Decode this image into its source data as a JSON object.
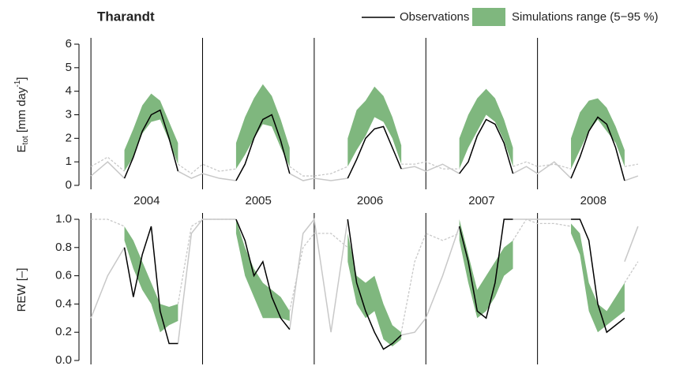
{
  "chart_data": [
    {
      "type": "band-line",
      "title": "Tharandt",
      "ylabel": [
        "E",
        "tot",
        " [mm day",
        "-1",
        "]"
      ],
      "x": [
        2004,
        2004.15,
        2004.3,
        2004.38,
        2004.46,
        2004.54,
        2004.62,
        2004.7,
        2004.78,
        2004.9,
        2005,
        2005.15,
        2005.3,
        2005.38,
        2005.46,
        2005.54,
        2005.62,
        2005.7,
        2005.78,
        2005.9,
        2006,
        2006.15,
        2006.3,
        2006.38,
        2006.46,
        2006.54,
        2006.62,
        2006.7,
        2006.78,
        2006.9,
        2007,
        2007.15,
        2007.3,
        2007.38,
        2007.46,
        2007.54,
        2007.62,
        2007.7,
        2007.78,
        2007.9,
        2008,
        2008.15,
        2008.3,
        2008.38,
        2008.46,
        2008.54,
        2008.62,
        2008.7,
        2008.78,
        2008.9
      ],
      "xlim": [
        2003.9,
        2009
      ],
      "xticks": [
        {
          "value": 2004.5,
          "label": "2004"
        },
        {
          "value": 2005.5,
          "label": "2005"
        },
        {
          "value": 2006.5,
          "label": "2006"
        },
        {
          "value": 2007.5,
          "label": "2007"
        },
        {
          "value": 2008.5,
          "label": "2008"
        }
      ],
      "vlines": [
        2004,
        2005,
        2006,
        2007,
        2008
      ],
      "ylim": [
        0,
        6
      ],
      "yticks": [
        0,
        1,
        2,
        3,
        4,
        5,
        6
      ],
      "series": [
        {
          "name": "Observations",
          "color": "#000000",
          "values": [
            null,
            null,
            0.3,
            1.2,
            2.3,
            3.0,
            3.2,
            2.0,
            0.6,
            null,
            null,
            null,
            0.2,
            0.9,
            2.0,
            2.8,
            3.0,
            1.9,
            0.5,
            null,
            null,
            null,
            0.3,
            1.1,
            2.0,
            2.4,
            2.5,
            1.6,
            0.7,
            null,
            null,
            null,
            0.5,
            1.0,
            2.1,
            2.8,
            2.6,
            1.8,
            0.5,
            null,
            null,
            null,
            0.3,
            1.2,
            2.3,
            2.9,
            2.6,
            1.6,
            0.2,
            null
          ]
        },
        {
          "name": "Simulations range (5−95 %)",
          "color": "#7fb77e",
          "lower": [
            null,
            null,
            0.6,
            1.2,
            2.2,
            2.7,
            2.8,
            1.9,
            0.9,
            null,
            null,
            null,
            0.7,
            1.3,
            2.0,
            2.6,
            2.5,
            1.6,
            0.8,
            null,
            null,
            null,
            0.8,
            1.5,
            2.1,
            2.9,
            2.7,
            2.0,
            0.9,
            null,
            null,
            null,
            0.7,
            1.6,
            2.3,
            3.0,
            2.7,
            1.9,
            0.8,
            null,
            null,
            null,
            0.7,
            1.5,
            2.3,
            2.8,
            2.3,
            1.8,
            0.8,
            null
          ],
          "upper": [
            null,
            null,
            1.5,
            2.4,
            3.4,
            3.9,
            3.6,
            2.7,
            1.8,
            null,
            null,
            null,
            1.8,
            2.9,
            3.7,
            4.3,
            3.8,
            2.8,
            1.6,
            null,
            null,
            null,
            2.0,
            3.2,
            3.6,
            4.2,
            3.8,
            2.9,
            1.7,
            null,
            null,
            null,
            2.0,
            3.0,
            3.7,
            4.1,
            3.7,
            2.8,
            1.6,
            null,
            null,
            null,
            2.0,
            3.1,
            3.6,
            3.7,
            3.3,
            2.5,
            1.5,
            null
          ]
        },
        {
          "color": "#c8c8c8",
          "values": [
            0.4,
            1.0,
            0.3,
            null,
            null,
            null,
            null,
            null,
            0.6,
            0.3,
            0.5,
            0.3,
            0.2,
            null,
            null,
            null,
            null,
            null,
            0.5,
            0.2,
            0.3,
            0.2,
            0.3,
            null,
            null,
            null,
            null,
            null,
            0.7,
            0.8,
            0.6,
            0.9,
            0.5,
            null,
            null,
            null,
            null,
            null,
            0.5,
            0.8,
            0.5,
            1.0,
            0.3,
            null,
            null,
            null,
            null,
            null,
            0.2,
            0.4
          ]
        },
        {
          "color": "#c8c8c8",
          "dash": true,
          "values": [
            0.8,
            1.2,
            0.6,
            null,
            null,
            null,
            null,
            null,
            0.9,
            0.5,
            0.9,
            0.6,
            0.7,
            null,
            null,
            null,
            null,
            null,
            0.8,
            0.4,
            0.4,
            0.5,
            0.8,
            null,
            null,
            null,
            null,
            null,
            0.9,
            0.9,
            1.0,
            0.7,
            0.7,
            null,
            null,
            null,
            null,
            null,
            0.8,
            1.0,
            0.8,
            0.9,
            0.7,
            null,
            null,
            null,
            null,
            null,
            0.8,
            0.9
          ]
        }
      ]
    },
    {
      "type": "band-line",
      "ylabel": [
        "REW [–]"
      ],
      "x": [
        2004,
        2004.15,
        2004.3,
        2004.38,
        2004.46,
        2004.54,
        2004.62,
        2004.7,
        2004.78,
        2004.9,
        2005,
        2005.15,
        2005.3,
        2005.38,
        2005.46,
        2005.54,
        2005.62,
        2005.7,
        2005.78,
        2005.9,
        2006,
        2006.15,
        2006.3,
        2006.38,
        2006.46,
        2006.54,
        2006.62,
        2006.7,
        2006.78,
        2006.9,
        2007,
        2007.15,
        2007.3,
        2007.38,
        2007.46,
        2007.54,
        2007.62,
        2007.7,
        2007.78,
        2007.9,
        2008,
        2008.15,
        2008.3,
        2008.38,
        2008.46,
        2008.54,
        2008.62,
        2008.7,
        2008.78,
        2008.9
      ],
      "xlim": [
        2003.9,
        2009
      ],
      "vlines": [
        2004,
        2005,
        2006,
        2007,
        2008
      ],
      "ylim": [
        0,
        1
      ],
      "yticks": [
        {
          "value": 0,
          "label": "0.0"
        },
        0.2,
        0.4,
        0.6,
        0.8,
        {
          "value": 1,
          "label": "1.0"
        }
      ],
      "series": [
        {
          "color": "#000000",
          "values": [
            null,
            null,
            0.8,
            0.45,
            0.75,
            0.95,
            0.35,
            0.12,
            0.12,
            null,
            null,
            null,
            1.0,
            0.85,
            0.6,
            0.7,
            0.45,
            0.3,
            0.22,
            null,
            null,
            null,
            1.0,
            0.55,
            0.35,
            0.2,
            0.08,
            0.12,
            0.18,
            null,
            null,
            null,
            0.95,
            0.7,
            0.35,
            0.3,
            0.55,
            1.0,
            1.0,
            null,
            null,
            null,
            1.0,
            1.0,
            0.85,
            0.4,
            0.2,
            0.25,
            0.3,
            null
          ]
        },
        {
          "color": "#7fb77e",
          "lower": [
            null,
            null,
            0.85,
            0.65,
            0.5,
            0.4,
            0.2,
            0.25,
            0.28,
            null,
            null,
            null,
            0.9,
            0.6,
            0.45,
            0.3,
            0.3,
            0.3,
            0.28,
            null,
            null,
            null,
            0.7,
            0.4,
            0.3,
            0.35,
            0.15,
            0.1,
            0.15,
            null,
            null,
            null,
            0.85,
            0.55,
            0.3,
            0.35,
            0.45,
            0.6,
            0.65,
            null,
            null,
            null,
            0.9,
            0.75,
            0.35,
            0.2,
            0.25,
            0.3,
            0.35,
            null
          ],
          "upper": [
            null,
            null,
            0.95,
            0.85,
            0.7,
            0.55,
            0.4,
            0.38,
            0.4,
            null,
            null,
            null,
            1.0,
            0.8,
            0.65,
            0.55,
            0.5,
            0.45,
            0.35,
            null,
            null,
            null,
            0.9,
            0.6,
            0.55,
            0.6,
            0.4,
            0.25,
            0.2,
            null,
            null,
            null,
            1.0,
            0.75,
            0.5,
            0.6,
            0.7,
            0.8,
            0.85,
            null,
            null,
            null,
            0.97,
            0.9,
            0.55,
            0.4,
            0.35,
            0.45,
            0.55,
            null
          ]
        },
        {
          "color": "#c8c8c8",
          "values": [
            0.3,
            0.6,
            0.8,
            null,
            null,
            null,
            null,
            null,
            0.12,
            0.9,
            1.0,
            1.0,
            1.0,
            null,
            null,
            null,
            null,
            null,
            0.22,
            0.9,
            1.0,
            0.2,
            1.0,
            null,
            null,
            null,
            null,
            null,
            0.18,
            0.2,
            0.3,
            0.6,
            0.95,
            null,
            null,
            null,
            null,
            null,
            1.0,
            1.0,
            1.0,
            1.0,
            1.0,
            null,
            null,
            null,
            null,
            null,
            0.7,
            0.95
          ]
        },
        {
          "color": "#c8c8c8",
          "dash": true,
          "values": [
            1.0,
            1.0,
            0.95,
            null,
            null,
            null,
            null,
            null,
            0.4,
            0.95,
            1.0,
            1.0,
            1.0,
            null,
            null,
            null,
            null,
            null,
            0.35,
            0.8,
            0.9,
            0.9,
            0.8,
            null,
            null,
            null,
            null,
            null,
            0.2,
            0.7,
            0.9,
            0.85,
            0.9,
            null,
            null,
            null,
            null,
            null,
            0.85,
            1.0,
            0.97,
            0.97,
            0.95,
            null,
            null,
            null,
            null,
            null,
            0.55,
            0.7
          ]
        }
      ]
    }
  ]
}
